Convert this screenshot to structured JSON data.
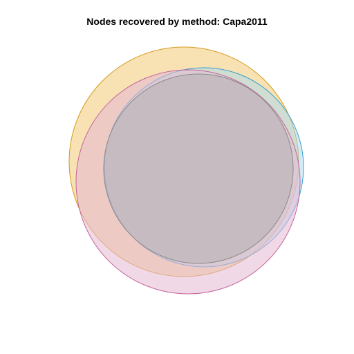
{
  "figure": {
    "title": "Nodes recovered by method: Capa2011"
  },
  "venn": {
    "sets": [
      {
        "fill": "#f0c060",
        "stroke": "#d39b1c",
        "fill_opacity": 0.48
      },
      {
        "fill": "#a8d8ee",
        "stroke": "#3a9fd1",
        "fill_opacity": 0.52
      },
      {
        "fill": "#e6b8d3",
        "stroke": "#c4649a",
        "fill_opacity": 0.55
      },
      {
        "fill": "#aaaaaa",
        "stroke": "#8a8a8a",
        "fill_opacity": 0.42
      }
    ]
  }
}
